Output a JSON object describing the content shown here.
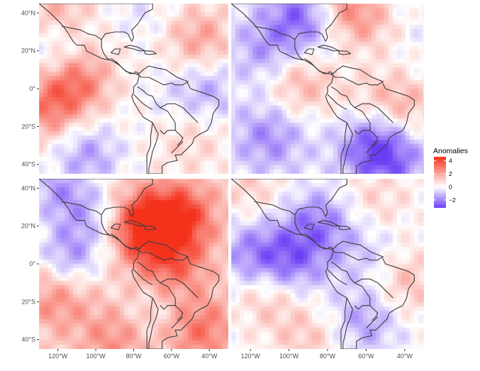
{
  "legend": {
    "title": "Anomalies",
    "ticks": [
      {
        "value": 4,
        "label": "4"
      },
      {
        "value": 2,
        "label": "2"
      },
      {
        "value": 0,
        "label": "0"
      },
      {
        "value": -2,
        "label": "−2"
      }
    ],
    "range": [
      -3.2,
      4.6
    ],
    "colors": {
      "low": "#6a3df5",
      "mid": "#ffffff",
      "high": "#f4321e"
    }
  },
  "axes": {
    "lon_ticks": [
      "120°W",
      "100°W",
      "80°W",
      "60°W",
      "40°W"
    ],
    "lat_ticks": [
      "40°N",
      "20°N",
      "0°",
      "20°S",
      "40°S"
    ],
    "lon_range": [
      -130,
      -30
    ],
    "lat_range": [
      -45,
      45
    ]
  },
  "panels": [
    {
      "id": "top-left",
      "base": 0.2,
      "blobs": [
        {
          "lon": -110,
          "lat": 5,
          "value": 2.6
        },
        {
          "lon": -125,
          "lat": -10,
          "value": 2.2
        },
        {
          "lon": -120,
          "lat": 40,
          "value": 1.5
        },
        {
          "lon": -45,
          "lat": 25,
          "value": 1.8
        },
        {
          "lon": -105,
          "lat": -35,
          "value": -1.8
        },
        {
          "lon": -120,
          "lat": 20,
          "value": -1.5
        },
        {
          "lon": -40,
          "lat": 0,
          "value": -1.6
        },
        {
          "lon": -50,
          "lat": -25,
          "value": 0.8
        },
        {
          "lon": -60,
          "lat": -5,
          "value": -0.5
        },
        {
          "lon": -75,
          "lat": 40,
          "value": -0.6
        }
      ]
    },
    {
      "id": "top-right",
      "base": -0.3,
      "blobs": [
        {
          "lon": -90,
          "lat": 40,
          "value": -2.8
        },
        {
          "lon": -110,
          "lat": 20,
          "value": -1.5
        },
        {
          "lon": -95,
          "lat": 3,
          "value": 2.0
        },
        {
          "lon": -55,
          "lat": -30,
          "value": -2.6
        },
        {
          "lon": -40,
          "lat": -10,
          "value": 1.8
        },
        {
          "lon": -75,
          "lat": 45,
          "value": 2.5
        },
        {
          "lon": -60,
          "lat": 35,
          "value": 1.4
        },
        {
          "lon": -110,
          "lat": -25,
          "value": -1.6
        },
        {
          "lon": -45,
          "lat": -40,
          "value": -1.2
        },
        {
          "lon": -60,
          "lat": -5,
          "value": 0.9
        }
      ]
    },
    {
      "id": "bottom-left",
      "base": 0.8,
      "blobs": [
        {
          "lon": -75,
          "lat": 20,
          "value": 3.8
        },
        {
          "lon": -55,
          "lat": 25,
          "value": 2.8
        },
        {
          "lon": -120,
          "lat": 40,
          "value": -2.2
        },
        {
          "lon": -115,
          "lat": 2,
          "value": -2.6
        },
        {
          "lon": -100,
          "lat": 25,
          "value": -1.6
        },
        {
          "lon": -60,
          "lat": 0,
          "value": 2.0
        },
        {
          "lon": -120,
          "lat": -15,
          "value": 2.0
        },
        {
          "lon": -45,
          "lat": -35,
          "value": 2.0
        },
        {
          "lon": -70,
          "lat": -25,
          "value": -0.8
        },
        {
          "lon": -90,
          "lat": -40,
          "value": 1.5
        }
      ]
    },
    {
      "id": "bottom-right",
      "base": 0.0,
      "blobs": [
        {
          "lon": -100,
          "lat": 0,
          "value": -2.4
        },
        {
          "lon": -120,
          "lat": 5,
          "value": -1.8
        },
        {
          "lon": -85,
          "lat": 22,
          "value": -2.0
        },
        {
          "lon": -60,
          "lat": -30,
          "value": -1.6
        },
        {
          "lon": -110,
          "lat": -15,
          "value": 1.6
        },
        {
          "lon": -120,
          "lat": 40,
          "value": 1.0
        },
        {
          "lon": -40,
          "lat": -10,
          "value": 1.4
        },
        {
          "lon": -55,
          "lat": 35,
          "value": 0.9
        },
        {
          "lon": -90,
          "lat": -40,
          "value": 1.1
        },
        {
          "lon": -60,
          "lat": 5,
          "value": -0.9
        }
      ]
    }
  ]
}
